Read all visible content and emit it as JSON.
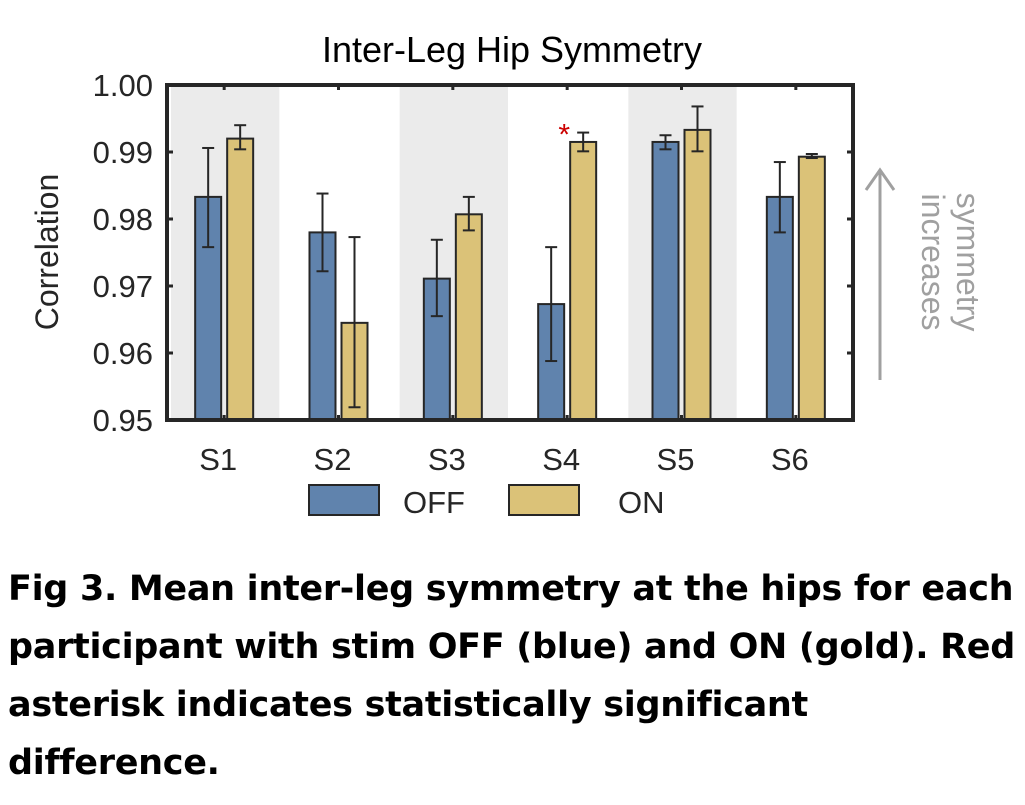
{
  "chart_data": {
    "type": "bar",
    "title": "Inter-Leg Hip Symmetry",
    "ylabel": "Correlation",
    "xlabel": "",
    "categories": [
      "S1",
      "S2",
      "S3",
      "S4",
      "S5",
      "S6"
    ],
    "ylim": [
      0.95,
      1.0
    ],
    "yticks": [
      "0.95",
      "0.96",
      "0.97",
      "0.98",
      "0.99",
      "1.00"
    ],
    "grid": false,
    "legend_position": "bottom",
    "series": [
      {
        "name": "OFF",
        "color": "#6083ad",
        "values": [
          0.9833,
          0.978,
          0.9711,
          0.9673,
          0.9915,
          0.9833
        ],
        "err_low": [
          0.9758,
          0.9722,
          0.9655,
          0.9588,
          0.9904,
          0.978
        ],
        "err_high": [
          0.9906,
          0.9838,
          0.9769,
          0.9758,
          0.9925,
          0.9885
        ]
      },
      {
        "name": "ON",
        "color": "#dbc278",
        "values": [
          0.992,
          0.9645,
          0.9807,
          0.9915,
          0.9933,
          0.9893
        ],
        "err_low": [
          0.9904,
          0.9519,
          0.9783,
          0.9901,
          0.9901,
          0.9891
        ],
        "err_high": [
          0.994,
          0.9773,
          0.9833,
          0.9929,
          0.9968,
          0.9897
        ]
      }
    ],
    "significance": {
      "category": "S4",
      "marker": "*",
      "color": "#cc0000"
    },
    "shaded_categories": [
      "S1",
      "S3",
      "S5"
    ],
    "annotation": {
      "text_line1": "symmetry",
      "text_line2": "increases",
      "color": "#a0a0a0"
    }
  },
  "caption": "Fig 3. Mean inter-leg symmetry at the hips for each participant with stim OFF (blue) and ON (gold). Red asterisk indicates statistically significant difference."
}
